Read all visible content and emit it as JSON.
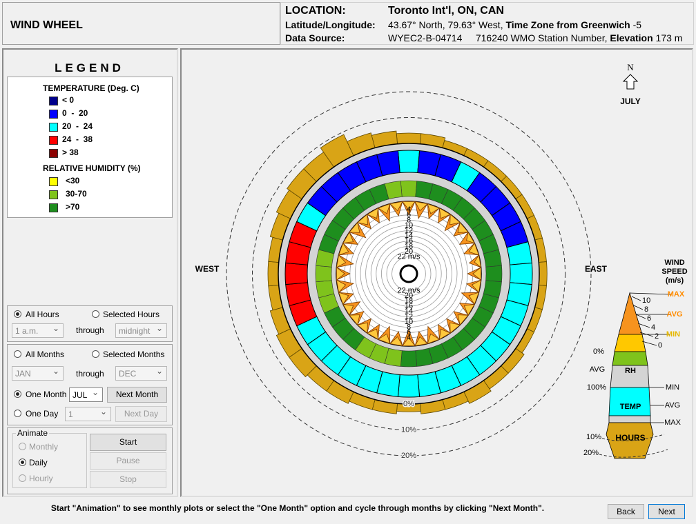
{
  "header": {
    "title": "WIND WHEEL",
    "location_label": "LOCATION:",
    "location": "Toronto Int'l, ON, CAN",
    "latlon_label": "Latitude/Longitude:",
    "latlon": "43.67° North, 79.63° West,",
    "tz_label": "Time Zone from Greenwich",
    "tz": "-5",
    "source_label": "Data Source:",
    "source": "WYEC2-B-04714",
    "station": "716240 WMO Station Number,",
    "elev_label": "Elevation",
    "elev": "173 m"
  },
  "legend": {
    "title": "LEGEND",
    "temp_title": "TEMPERATURE (Deg. C)",
    "temp_items": [
      {
        "label": "< 0",
        "color": "#00008b"
      },
      {
        "label": "0  -  20",
        "color": "#0000ff"
      },
      {
        "label": "20  -  24",
        "color": "#00ffff"
      },
      {
        "label": "24  -  38",
        "color": "#ff0000"
      },
      {
        "label": "> 38",
        "color": "#8b0000"
      }
    ],
    "rh_title": "RELATIVE HUMIDITY (%)",
    "rh_items": [
      {
        "label": "<30",
        "color": "#ffff00"
      },
      {
        "label": "30-70",
        "color": "#7fc31c"
      },
      {
        "label": ">70",
        "color": "#1e8e1e"
      }
    ]
  },
  "controls": {
    "hours": {
      "all": "All Hours",
      "selected": "Selected Hours",
      "from": "1 a.m.",
      "through": "through",
      "to": "midnight"
    },
    "months": {
      "all": "All Months",
      "selected": "Selected Months",
      "from": "JAN",
      "through": "through",
      "to": "DEC",
      "one": "One Month",
      "month": "JUL",
      "next": "Next Month"
    },
    "day": {
      "one": "One Day",
      "day": "1",
      "next": "Next Day"
    },
    "animate": {
      "title": "Animate",
      "monthly": "Monthly",
      "daily": "Daily",
      "hourly": "Hourly",
      "start": "Start",
      "pause": "Pause",
      "stop": "Stop"
    }
  },
  "footer": {
    "hint": "Start \"Animation\" to see monthly plots or select the \"One Month\" option and cycle through months by clicking \"Next Month\".",
    "back": "Back",
    "next": "Next"
  },
  "chart_data": {
    "type": "wind_wheel",
    "north": "N",
    "month": "JULY",
    "west": "WEST",
    "east": "EAST",
    "hours": [
      4,
      4,
      3,
      3,
      3,
      3,
      3,
      3,
      3,
      3,
      3,
      3,
      3,
      4,
      4,
      5,
      4,
      4,
      3,
      4,
      4,
      5,
      5,
      6,
      6,
      5,
      4,
      4,
      4,
      5,
      6,
      7,
      7,
      9,
      6,
      5
    ],
    "hours_color": "#d9a416",
    "hours_ticks": [
      {
        "value": 0,
        "label": "0%"
      },
      {
        "value": 10,
        "label": "10%"
      },
      {
        "value": 20,
        "label": "20%"
      }
    ],
    "temp_class": [
      2,
      1,
      1,
      2,
      1,
      1,
      1,
      1,
      2,
      2,
      2,
      2,
      2,
      2,
      2,
      2,
      2,
      2,
      2,
      2,
      2,
      2,
      2,
      2,
      2,
      3,
      3,
      3,
      3,
      3,
      2,
      1,
      1,
      1,
      1,
      1
    ],
    "rh_class": [
      1,
      2,
      2,
      2,
      2,
      2,
      2,
      2,
      2,
      2,
      2,
      2,
      2,
      2,
      2,
      2,
      2,
      2,
      2,
      1,
      1,
      1,
      2,
      2,
      2,
      1,
      1,
      1,
      1,
      2,
      2,
      2,
      2,
      2,
      2,
      1
    ],
    "wind_max": [
      6,
      7,
      6,
      6,
      7,
      6,
      6,
      6,
      5,
      6,
      6,
      7,
      6,
      6,
      6,
      6,
      7,
      6,
      7,
      6,
      7,
      6,
      6,
      6,
      7,
      6,
      7,
      6,
      7,
      6,
      6,
      7,
      6,
      6,
      7,
      6
    ],
    "wind_avg": [
      4,
      4,
      4,
      4,
      4,
      4,
      3,
      4,
      3,
      4,
      4,
      4,
      4,
      4,
      4,
      4,
      4,
      4,
      4,
      4,
      4,
      4,
      4,
      4,
      4,
      4,
      4,
      4,
      4,
      4,
      4,
      4,
      4,
      4,
      4,
      4
    ],
    "wind_max_color": "#f7931e",
    "wind_avg_color": "#ffc83c",
    "wind_ticks": [
      4,
      6,
      8,
      10,
      12,
      14,
      16,
      18,
      20,
      {
        "value": 22,
        "label": "22 m/s"
      }
    ],
    "key": {
      "wind_title": [
        "WIND",
        "SPEED",
        "(m/s)"
      ],
      "scale": [
        10,
        8,
        6,
        4,
        2,
        0
      ],
      "max": "MAX",
      "avg": "AVG",
      "min": "MIN",
      "rh_low": "0%",
      "rh_avg": "AVG",
      "rh": "RH",
      "rh_high": "100%",
      "temp_min": "MIN",
      "temp_avg": "AVG",
      "temp": "TEMP",
      "temp_max": "MAX",
      "hours": "HOURS",
      "h10": "10%",
      "h20": "20%"
    }
  }
}
